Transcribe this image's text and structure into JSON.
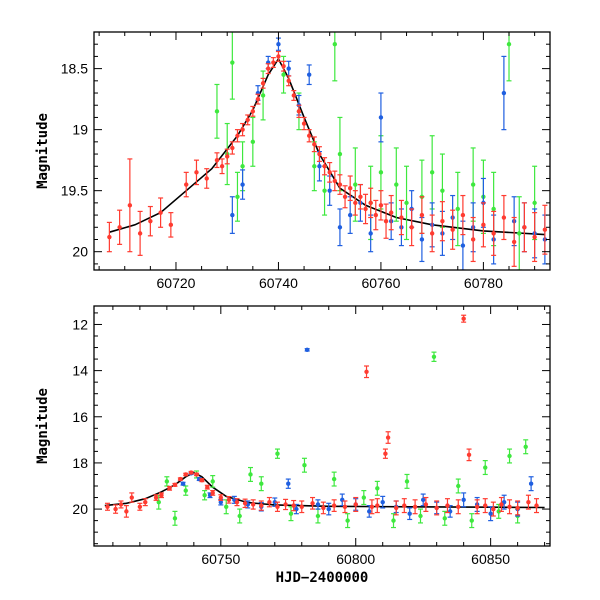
{
  "chart_data": [
    {
      "type": "scatter",
      "panel": "top",
      "xlabel": "",
      "ylabel": "Magnitude",
      "xlim": [
        60704,
        60793
      ],
      "ylim": [
        20.15,
        18.2
      ],
      "y_inverted": true,
      "xticks": [
        60720,
        60740,
        60760,
        60780
      ],
      "yticks": [
        18.5,
        19,
        19.5,
        20
      ],
      "grid": false,
      "legend": "none",
      "colors": {
        "red": "#ff3b30",
        "green": "#3ee83e",
        "blue": "#1f5fe0",
        "fit": "#000000"
      },
      "fit_curve": {
        "name": "",
        "x": [
          60707,
          60712,
          60717,
          60722,
          60727,
          60732,
          60735,
          60738,
          60740,
          60742,
          60745,
          60748,
          60752,
          60757,
          60763,
          60770,
          60780,
          60792
        ],
        "y": [
          19.84,
          19.78,
          19.68,
          19.5,
          19.32,
          19.05,
          18.84,
          18.55,
          18.42,
          18.58,
          18.9,
          19.2,
          19.48,
          19.62,
          19.72,
          19.78,
          19.83,
          19.86
        ]
      },
      "series": [
        {
          "name": "",
          "color": "red",
          "x": [
            60707,
            60709,
            60711,
            60713,
            60715,
            60717,
            60719,
            60722,
            60724,
            60726,
            60728,
            60729,
            60730,
            60731,
            60732,
            60733,
            60734,
            60735,
            60736,
            60737,
            60738,
            60739,
            60740,
            60741,
            60742,
            60743,
            60744,
            60745,
            60746,
            60747,
            60748,
            60749,
            60750,
            60751,
            60752,
            60753,
            60754,
            60755,
            60756,
            60757,
            60758,
            60759,
            60760,
            60761,
            60762,
            60764,
            60766,
            60768,
            60770,
            60772,
            60774,
            60776,
            60778,
            60780,
            60782,
            60784,
            60786,
            60788,
            60790,
            60792
          ],
          "y": [
            19.88,
            19.8,
            19.62,
            19.85,
            19.75,
            19.68,
            19.78,
            19.45,
            19.35,
            19.4,
            19.25,
            19.3,
            19.22,
            19.15,
            19.05,
            19.0,
            18.92,
            18.85,
            18.75,
            18.62,
            18.5,
            18.45,
            18.4,
            18.48,
            18.6,
            18.72,
            18.85,
            18.95,
            19.05,
            19.12,
            19.2,
            19.3,
            19.35,
            19.42,
            19.45,
            19.55,
            19.48,
            19.6,
            19.55,
            19.65,
            19.6,
            19.7,
            19.62,
            19.75,
            19.68,
            19.72,
            19.8,
            19.7,
            19.85,
            19.75,
            19.82,
            19.7,
            19.9,
            19.78,
            19.85,
            19.72,
            19.92,
            19.8,
            19.88,
            19.82
          ],
          "err": [
            0.12,
            0.14,
            0.38,
            0.18,
            0.12,
            0.12,
            0.1,
            0.1,
            0.1,
            0.08,
            0.06,
            0.06,
            0.06,
            0.05,
            0.05,
            0.05,
            0.04,
            0.04,
            0.04,
            0.04,
            0.04,
            0.04,
            0.04,
            0.04,
            0.04,
            0.04,
            0.05,
            0.05,
            0.05,
            0.06,
            0.06,
            0.07,
            0.08,
            0.08,
            0.08,
            0.09,
            0.1,
            0.1,
            0.1,
            0.12,
            0.12,
            0.12,
            0.12,
            0.14,
            0.14,
            0.14,
            0.15,
            0.15,
            0.15,
            0.16,
            0.16,
            0.16,
            0.18,
            0.18,
            0.18,
            0.18,
            0.2,
            0.2,
            0.2,
            0.2
          ]
        },
        {
          "name": "",
          "color": "green",
          "x": [
            60728,
            60730,
            60731,
            60732,
            60733,
            60735,
            60737,
            60741,
            60744,
            60747,
            60749,
            60751,
            60752,
            60755,
            60758,
            60760,
            60763,
            60765,
            60768,
            60770,
            60772,
            60775,
            60778,
            60780,
            60782,
            60785,
            60787,
            60790
          ],
          "y": [
            18.85,
            19.2,
            18.45,
            19.55,
            19.3,
            19.1,
            18.72,
            18.55,
            18.85,
            19.3,
            19.5,
            18.3,
            19.2,
            19.45,
            19.6,
            19.35,
            19.45,
            19.6,
            19.55,
            19.35,
            19.5,
            19.65,
            19.45,
            19.55,
            19.65,
            18.3,
            19.85,
            19.6
          ],
          "err": [
            0.22,
            0.25,
            0.3,
            0.2,
            0.2,
            0.2,
            0.2,
            0.15,
            0.15,
            0.2,
            0.2,
            0.3,
            0.3,
            0.3,
            0.3,
            0.3,
            0.3,
            0.3,
            0.3,
            0.3,
            0.3,
            0.3,
            0.3,
            0.3,
            0.3,
            0.3,
            0.3,
            0.3
          ]
        },
        {
          "name": "",
          "color": "blue",
          "x": [
            60731,
            60733,
            60736,
            60738,
            60740,
            60742,
            60744,
            60746,
            60748,
            60750,
            60752,
            60754,
            60756,
            60758,
            60760,
            60762,
            60764,
            60766,
            60768,
            60770,
            60772,
            60774,
            60776,
            60778,
            60780,
            60782,
            60784,
            60786,
            60788,
            60790,
            60792
          ],
          "y": [
            19.7,
            19.45,
            18.7,
            18.45,
            18.3,
            18.5,
            18.8,
            18.55,
            19.3,
            19.5,
            19.8,
            19.7,
            19.6,
            19.85,
            18.9,
            19.75,
            19.8,
            19.65,
            19.9,
            19.78,
            19.85,
            19.72,
            19.95,
            19.8,
            19.6,
            19.9,
            18.7,
            19.75,
            19.8,
            19.85,
            19.9
          ],
          "err": [
            0.15,
            0.12,
            0.06,
            0.05,
            0.05,
            0.06,
            0.08,
            0.08,
            0.12,
            0.12,
            0.15,
            0.15,
            0.15,
            0.15,
            0.2,
            0.15,
            0.15,
            0.15,
            0.18,
            0.18,
            0.18,
            0.18,
            0.2,
            0.2,
            0.2,
            0.2,
            0.3,
            0.2,
            0.2,
            0.2,
            0.2
          ]
        }
      ]
    },
    {
      "type": "scatter",
      "panel": "bottom",
      "xlabel": "HJD−2400000",
      "ylabel": "Magnitude",
      "xlim": [
        60703,
        60872
      ],
      "ylim": [
        21.6,
        11.2
      ],
      "y_inverted": true,
      "xticks": [
        60750,
        60800,
        60850
      ],
      "yticks": [
        12,
        14,
        16,
        18,
        20
      ],
      "grid": false,
      "legend": "none",
      "colors": {
        "red": "#ff3b30",
        "green": "#3ee83e",
        "blue": "#1f5fe0",
        "fit": "#000000"
      },
      "fit_curve": {
        "name": "",
        "x": [
          60707,
          60715,
          60722,
          60728,
          60733,
          60737,
          60740,
          60743,
          60747,
          60752,
          60760,
          60770,
          60790,
          60820,
          60850,
          60870
        ],
        "y": [
          19.85,
          19.75,
          19.55,
          19.25,
          18.95,
          18.6,
          18.42,
          18.6,
          19.05,
          19.45,
          19.72,
          19.82,
          19.88,
          19.9,
          19.92,
          19.93
        ]
      },
      "series": [
        {
          "name": "",
          "color": "red",
          "x": [
            60708,
            60711,
            60713,
            60715,
            60717,
            60720,
            60722,
            60726,
            60728,
            60731,
            60733,
            60735,
            60737,
            60739,
            60741,
            60743,
            60745,
            60747,
            60750,
            60753,
            60756,
            60759,
            60762,
            60765,
            60768,
            60771,
            60774,
            60777,
            60780,
            60784,
            60788,
            60792,
            60796,
            60800,
            60804,
            60806,
            60808,
            60811,
            60812,
            60815,
            60818,
            60822,
            60826,
            60830,
            60834,
            60838,
            60840,
            60842,
            60845,
            60848,
            60851,
            60854,
            60857,
            60860,
            60864,
            60867
          ],
          "y": [
            19.9,
            20.0,
            19.8,
            20.1,
            19.5,
            19.9,
            19.7,
            19.5,
            19.4,
            19.1,
            18.95,
            18.7,
            18.5,
            18.42,
            18.5,
            18.75,
            19.05,
            19.3,
            19.5,
            19.6,
            19.7,
            19.75,
            19.8,
            19.85,
            19.7,
            19.9,
            19.8,
            19.85,
            19.9,
            19.75,
            19.95,
            19.85,
            19.9,
            19.8,
            14.05,
            19.9,
            19.85,
            17.6,
            16.9,
            19.95,
            19.85,
            19.9,
            19.8,
            19.95,
            19.85,
            19.9,
            11.75,
            17.65,
            19.9,
            19.85,
            20.0,
            19.8,
            19.9,
            19.95,
            19.7,
            19.85
          ],
          "err": [
            0.15,
            0.18,
            0.15,
            0.25,
            0.2,
            0.15,
            0.15,
            0.12,
            0.1,
            0.08,
            0.06,
            0.05,
            0.05,
            0.05,
            0.05,
            0.06,
            0.08,
            0.1,
            0.12,
            0.14,
            0.15,
            0.18,
            0.2,
            0.2,
            0.2,
            0.2,
            0.22,
            0.22,
            0.25,
            0.25,
            0.25,
            0.25,
            0.25,
            0.3,
            0.25,
            0.3,
            0.3,
            0.2,
            0.25,
            0.3,
            0.3,
            0.3,
            0.3,
            0.3,
            0.3,
            0.3,
            0.15,
            0.25,
            0.3,
            0.3,
            0.3,
            0.3,
            0.3,
            0.3,
            0.3,
            0.3
          ]
        },
        {
          "name": "",
          "color": "green",
          "x": [
            60727,
            60730,
            60733,
            60737,
            60741,
            60744,
            60747,
            60752,
            60757,
            60761,
            60765,
            60771,
            60776,
            60781,
            60786,
            60792,
            60797,
            60803,
            60808,
            60814,
            60819,
            60824,
            60829,
            60833,
            60838,
            60843,
            60848,
            60853,
            60857,
            60860,
            60863
          ],
          "y": [
            19.7,
            18.8,
            20.4,
            19.2,
            18.5,
            19.4,
            18.8,
            19.9,
            20.3,
            18.5,
            18.9,
            17.6,
            20.2,
            18.1,
            20.3,
            18.7,
            20.5,
            19.5,
            19.1,
            20.5,
            18.8,
            20.3,
            13.4,
            20.4,
            19.0,
            20.5,
            18.2,
            20.1,
            17.7,
            20.3,
            17.3
          ],
          "err": [
            0.3,
            0.2,
            0.3,
            0.2,
            0.15,
            0.2,
            0.25,
            0.3,
            0.3,
            0.3,
            0.3,
            0.2,
            0.3,
            0.3,
            0.3,
            0.3,
            0.3,
            0.3,
            0.3,
            0.3,
            0.3,
            0.3,
            0.2,
            0.3,
            0.3,
            0.3,
            0.3,
            0.3,
            0.3,
            0.3,
            0.3
          ]
        },
        {
          "name": "",
          "color": "blue",
          "x": [
            60736,
            60739,
            60742,
            60746,
            60750,
            60755,
            60760,
            60765,
            60770,
            60775,
            60778,
            60782,
            60786,
            60790,
            60795,
            60800,
            60805,
            60810,
            60815,
            60820,
            60825,
            60830,
            60835,
            60840,
            60845,
            60850,
            60855,
            60860,
            60865
          ],
          "y": [
            18.9,
            18.45,
            18.7,
            19.4,
            19.7,
            19.6,
            19.8,
            19.9,
            19.7,
            18.9,
            20.0,
            13.1,
            19.8,
            20.0,
            19.6,
            19.8,
            20.1,
            19.7,
            19.9,
            20.2,
            19.6,
            19.95,
            20.1,
            19.6,
            19.8,
            20.2,
            19.7,
            20.0,
            18.9
          ],
          "err": [
            0.06,
            0.05,
            0.06,
            0.1,
            0.12,
            0.15,
            0.15,
            0.18,
            0.18,
            0.2,
            0.2,
            0.05,
            0.2,
            0.25,
            0.25,
            0.25,
            0.25,
            0.25,
            0.25,
            0.25,
            0.25,
            0.25,
            0.25,
            0.3,
            0.3,
            0.3,
            0.3,
            0.3,
            0.3
          ]
        }
      ]
    }
  ]
}
